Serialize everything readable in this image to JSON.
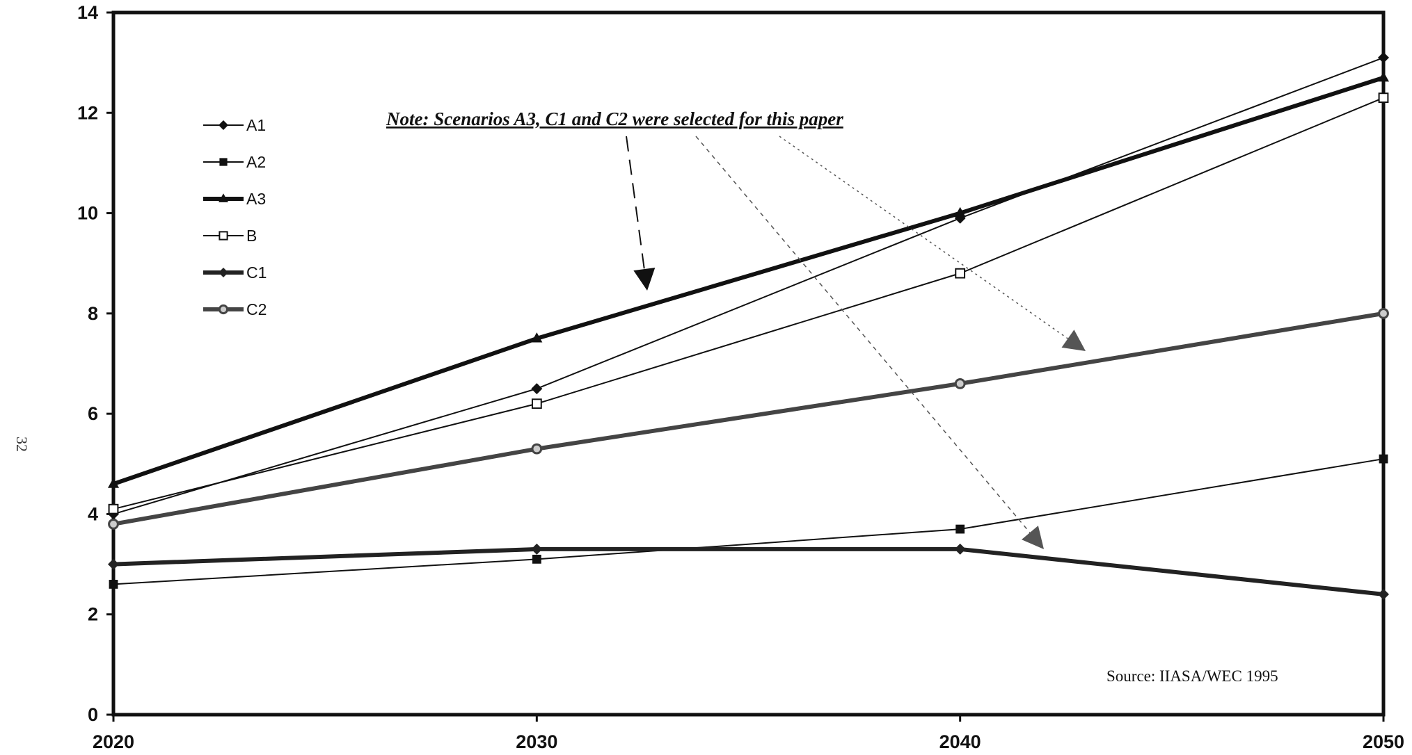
{
  "chart_data": {
    "type": "line",
    "x": [
      2020,
      2030,
      2040,
      2050
    ],
    "xlim": [
      2020,
      2050
    ],
    "ylim": [
      0,
      14
    ],
    "yticks": [
      0,
      2,
      4,
      6,
      8,
      10,
      12,
      14
    ],
    "xtick_labels": [
      "2020",
      "2030",
      "2040",
      "2050"
    ],
    "ytick_labels": [
      "0",
      "2",
      "4",
      "6",
      "8",
      "10",
      "12",
      "14"
    ],
    "grid": false,
    "legend_position": "top-left",
    "series": [
      {
        "name": "A1",
        "values": [
          4.0,
          6.5,
          9.9,
          13.1
        ],
        "marker": "diamond",
        "weight": "thin",
        "color": "#111111"
      },
      {
        "name": "A2",
        "values": [
          2.6,
          3.1,
          3.7,
          5.1
        ],
        "marker": "square",
        "weight": "thin",
        "color": "#111111"
      },
      {
        "name": "A3",
        "values": [
          4.6,
          7.5,
          10.0,
          12.7
        ],
        "marker": "triangle",
        "weight": "thick",
        "color": "#111111"
      },
      {
        "name": "B",
        "values": [
          4.1,
          6.2,
          8.8,
          12.3
        ],
        "marker": "open-square",
        "weight": "thin",
        "color": "#111111"
      },
      {
        "name": "C1",
        "values": [
          3.0,
          3.3,
          3.3,
          2.4
        ],
        "marker": "diamond",
        "weight": "thick",
        "color": "#222222"
      },
      {
        "name": "C2",
        "values": [
          3.8,
          5.3,
          6.6,
          8.0
        ],
        "marker": "circle",
        "weight": "thick",
        "color": "#444444"
      }
    ],
    "annotations": {
      "note": "Note: Scenarios A3, C1 and C2 were selected for this paper",
      "source": "Source: IIASA/WEC 1995"
    }
  },
  "page_number": "32"
}
